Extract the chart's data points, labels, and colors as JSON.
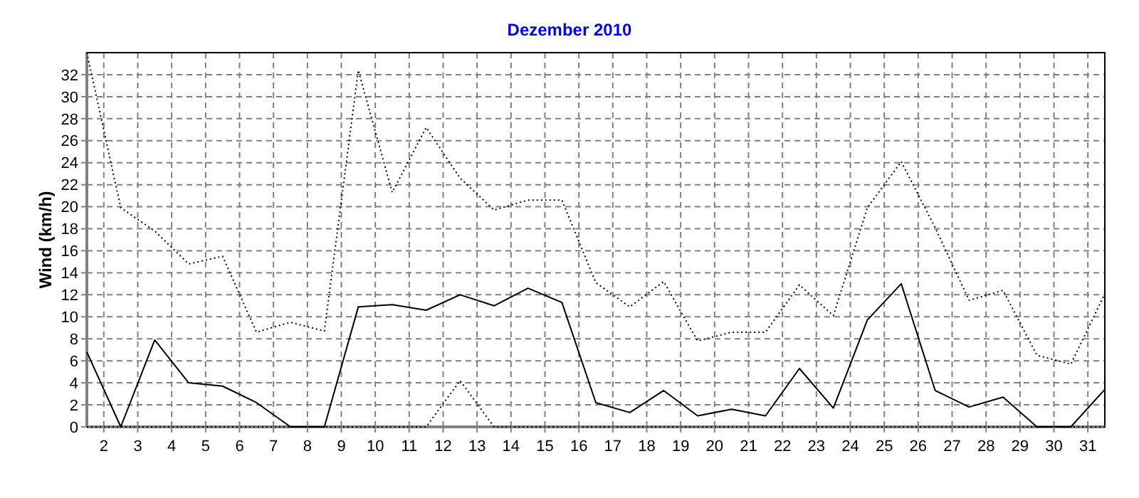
{
  "chart_data": {
    "type": "line",
    "title": "Dezember 2010",
    "ylabel": "Wind  (km/h)",
    "x": [
      1.5,
      2.5,
      3.5,
      4.5,
      5.5,
      6.5,
      7.5,
      8.5,
      9.5,
      10.5,
      11.5,
      12.5,
      13.5,
      14.5,
      15.5,
      16.5,
      17.5,
      18.5,
      19.5,
      20.5,
      21.5,
      22.5,
      23.5,
      24.5,
      25.5,
      26.5,
      27.5,
      28.5,
      29.5,
      30.5,
      31.5
    ],
    "xlim": [
      1.5,
      31.5
    ],
    "xticks": [
      2,
      3,
      4,
      5,
      6,
      7,
      8,
      9,
      10,
      11,
      12,
      13,
      14,
      15,
      16,
      17,
      18,
      19,
      20,
      21,
      22,
      23,
      24,
      25,
      26,
      27,
      28,
      29,
      30,
      31
    ],
    "ylim": [
      0,
      34
    ],
    "yticks": [
      0,
      2,
      4,
      6,
      8,
      10,
      12,
      14,
      16,
      18,
      20,
      22,
      24,
      26,
      28,
      30,
      32
    ],
    "grid": true,
    "series": [
      {
        "color": "#000000",
        "line_style": "dotted",
        "values": [
          34,
          19.9,
          17.8,
          14.8,
          15.5,
          8.6,
          9.5,
          8.7,
          32.4,
          21.3,
          27.2,
          22.6,
          19.7,
          20.6,
          20.6,
          13.1,
          10.9,
          13.2,
          7.8,
          8.6,
          8.6,
          12.9,
          10.1,
          19.9,
          24.1,
          18.1,
          11.5,
          12.4,
          6.5,
          5.7,
          12.1
        ]
      },
      {
        "color": "#000000",
        "line_style": "solid",
        "values": [
          6.8,
          0,
          7.9,
          4,
          3.7,
          2.2,
          0,
          0,
          10.9,
          11.1,
          10.6,
          12,
          11,
          12.6,
          11.3,
          2.2,
          1.3,
          3.3,
          1,
          1.6,
          1,
          5.3,
          1.7,
          9.7,
          13,
          3.3,
          1.8,
          2.7,
          0,
          0,
          3.4
        ]
      },
      {
        "color": "#000000",
        "line_style": "dotted",
        "values": [
          0,
          0,
          0,
          0,
          0,
          0,
          0,
          0,
          0,
          0,
          0,
          4.2,
          0,
          0,
          0,
          0,
          0,
          0,
          0,
          0,
          0,
          0,
          0,
          0,
          0,
          0,
          0,
          0,
          0,
          0,
          0
        ]
      }
    ]
  }
}
